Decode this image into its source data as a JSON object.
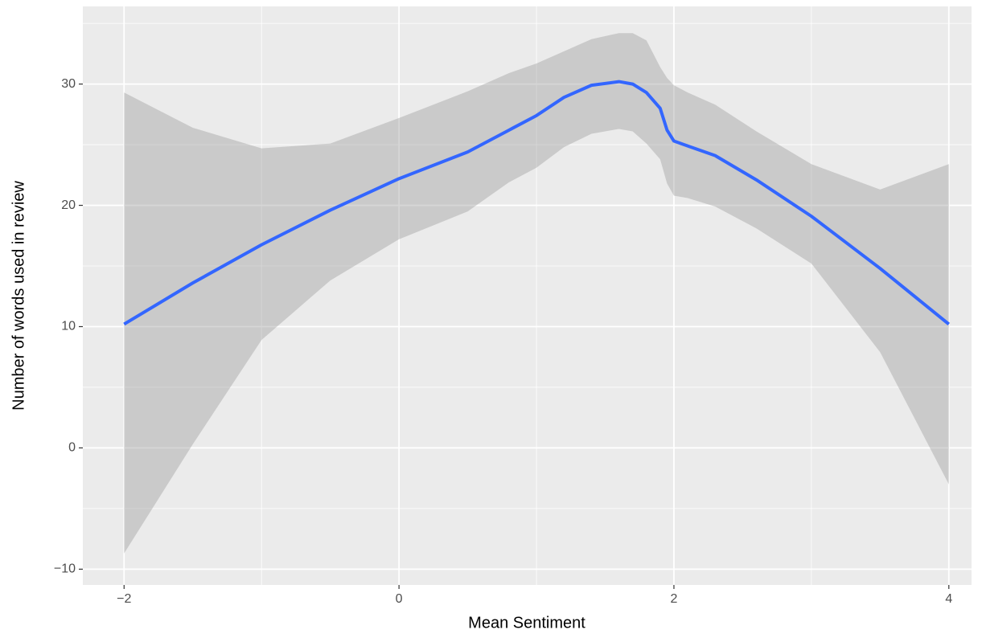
{
  "chart_data": {
    "type": "line",
    "x_label": "Mean Sentiment",
    "y_label": "Number of words used in review",
    "x": [
      -2,
      -1.5,
      -1,
      -0.5,
      0,
      0.5,
      0.8,
      1.0,
      1.2,
      1.4,
      1.6,
      1.7,
      1.8,
      1.9,
      1.95,
      2.0,
      2.1,
      2.3,
      2.6,
      3.0,
      3.5,
      4.0
    ],
    "series": [
      {
        "color": "#3366ff",
        "values": [
          10.2,
          13.6,
          16.75,
          19.6,
          22.2,
          24.4,
          26.2,
          27.4,
          28.9,
          29.9,
          30.2,
          30.0,
          29.3,
          28.0,
          26.2,
          25.3,
          24.9,
          24.1,
          22.1,
          19.1,
          14.8,
          10.2
        ]
      }
    ],
    "band": {
      "color": "#999999",
      "upper": [
        29.3,
        26.4,
        24.7,
        25.1,
        27.2,
        29.4,
        30.9,
        31.7,
        32.7,
        33.7,
        34.2,
        34.2,
        33.6,
        31.4,
        30.5,
        29.9,
        29.3,
        28.3,
        26.1,
        23.4,
        21.3,
        23.4
      ],
      "lower": [
        -8.7,
        0.3,
        8.9,
        13.8,
        17.2,
        19.5,
        21.9,
        23.1,
        24.8,
        25.9,
        26.3,
        26.1,
        25.1,
        23.8,
        21.8,
        20.8,
        20.6,
        19.9,
        18.1,
        15.2,
        7.9,
        -3.0
      ]
    },
    "xlim": [
      -2.3,
      4.165
    ],
    "ylim": [
      -11.3,
      36.4
    ],
    "xticks": [
      {
        "value": -2,
        "label": "−2"
      },
      0,
      2,
      4
    ],
    "yticks": [
      {
        "value": -10,
        "label": "−10"
      },
      0,
      10,
      20,
      30
    ],
    "xminor": [
      -1,
      1,
      3
    ],
    "yminor": [
      -5,
      5,
      15,
      25,
      35
    ],
    "grid": true
  }
}
